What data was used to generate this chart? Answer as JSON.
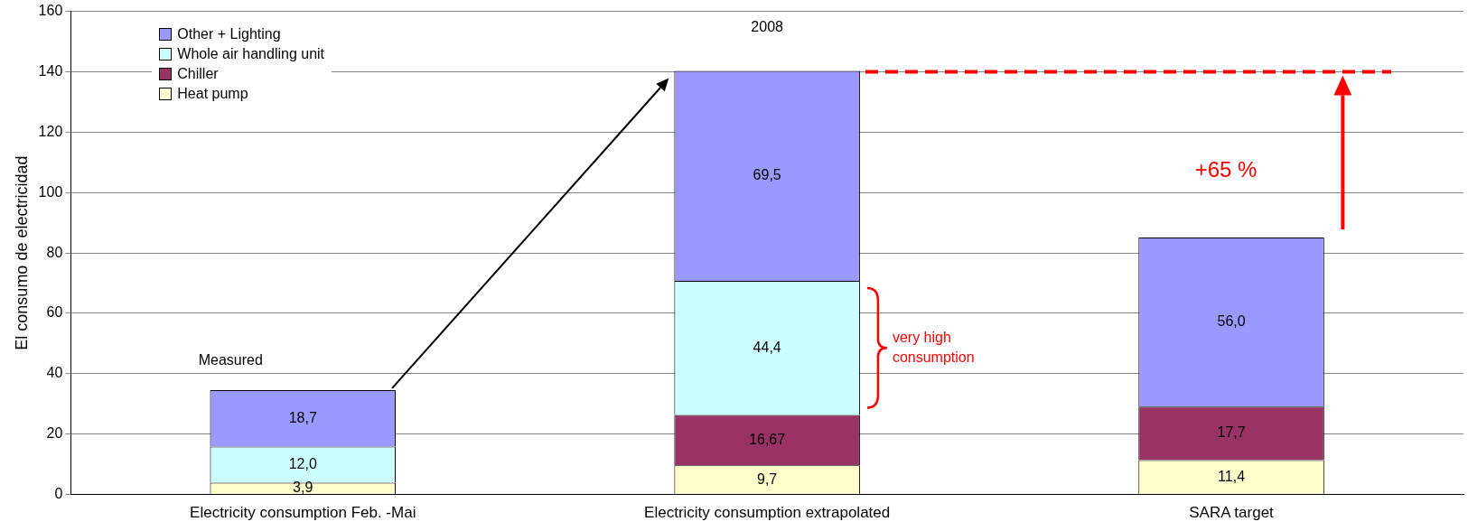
{
  "chart_data": {
    "type": "bar",
    "stacked": true,
    "ylabel": "El consumo de electricidad",
    "categories": [
      "Electricity consumption Feb. -Mai",
      "Electricity consumption extrapolated",
      "SARA target"
    ],
    "series": [
      {
        "name": "Heat pump",
        "color": "#ffffcc",
        "values": [
          3.9,
          9.7,
          11.4
        ],
        "value_labels": [
          "3,9",
          "9,7",
          "11,4"
        ]
      },
      {
        "name": "Chiller",
        "color": "#993366",
        "values": [
          null,
          16.67,
          17.7
        ],
        "value_labels": [
          null,
          "16,67",
          "17,7"
        ]
      },
      {
        "name": "Whole air handling unit",
        "color": "#ccffff",
        "values": [
          12.0,
          44.4,
          null
        ],
        "value_labels": [
          "12,0",
          "44,4",
          null
        ]
      },
      {
        "name": "Other + Lighting",
        "color": "#9999ff",
        "values": [
          18.7,
          69.5,
          56.0
        ],
        "value_labels": [
          "18,7",
          "69,5",
          "56,0"
        ]
      }
    ],
    "ylim": [
      0,
      160
    ],
    "yticks": [
      0,
      20,
      40,
      60,
      80,
      100,
      120,
      140,
      160
    ],
    "grid": "y",
    "legend": "top left",
    "ref_lines": [
      {
        "axis": "y",
        "value": 140,
        "color": "#ff0000",
        "line_style": "dashed"
      }
    ],
    "annotations": [
      "Measured",
      "2008",
      "+65 %",
      "very high consumption"
    ]
  }
}
